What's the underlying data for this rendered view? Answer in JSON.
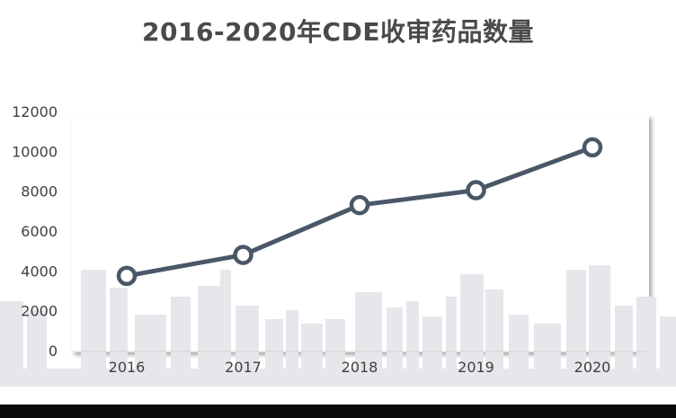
{
  "chart_data": {
    "type": "line",
    "title": "2016-2020年CDE收审药品数量",
    "categories": [
      "2016",
      "2017",
      "2018",
      "2019",
      "2020"
    ],
    "series": [
      {
        "values": [
          3750,
          4800,
          7300,
          8050,
          10200
        ]
      }
    ],
    "ylim": [
      0,
      12000
    ],
    "yticks": [
      "0",
      "2000",
      "4000",
      "6000",
      "8000",
      "10000",
      "12000"
    ],
    "grid": false,
    "legend": "none",
    "colors": {
      "line": "#4a5768",
      "marker_fill": "#ffffff",
      "skyline": "#e6e7ea",
      "title": "#4a4a4a"
    }
  }
}
